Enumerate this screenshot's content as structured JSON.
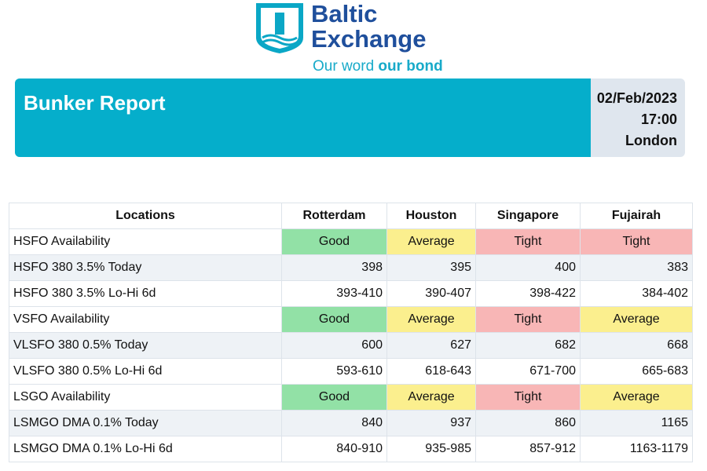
{
  "logo": {
    "name": [
      "Baltic",
      "Exchange"
    ],
    "tagline": [
      "Our word",
      "our bond"
    ]
  },
  "banner": {
    "title": "Bunker Report",
    "date": "02/Feb/2023",
    "time": "17:00",
    "location": "London"
  },
  "table": {
    "header": [
      "Locations",
      "Rotterdam",
      "Houston",
      "Singapore",
      "Fujairah"
    ],
    "rows": [
      [
        "HSFO Availability",
        "Good",
        "Average",
        "Tight",
        "Tight"
      ],
      [
        "HSFO 380 3.5% Today",
        "398",
        "395",
        "400",
        "383"
      ],
      [
        "HSFO 380 3.5% Lo-Hi 6d",
        "393-410",
        "390-407",
        "398-422",
        "384-402"
      ],
      [
        "VSFO Availability",
        "Good",
        "Average",
        "Tight",
        "Average"
      ],
      [
        "VLSFO 380 0.5% Today",
        "600",
        "627",
        "682",
        "668"
      ],
      [
        "VLSFO 380 0.5% Lo-Hi 6d",
        "593-610",
        "618-643",
        "671-700",
        "665-683"
      ],
      [
        "LSGO Availability",
        "Good",
        "Average",
        "Tight",
        "Average"
      ],
      [
        "LSMGO DMA 0.1% Today",
        "840",
        "937",
        "860",
        "1165"
      ],
      [
        "LSMGO DMA 0.1% Lo-Hi 6d",
        "840-910",
        "935-985",
        "857-912",
        "1163-1179"
      ]
    ]
  }
}
